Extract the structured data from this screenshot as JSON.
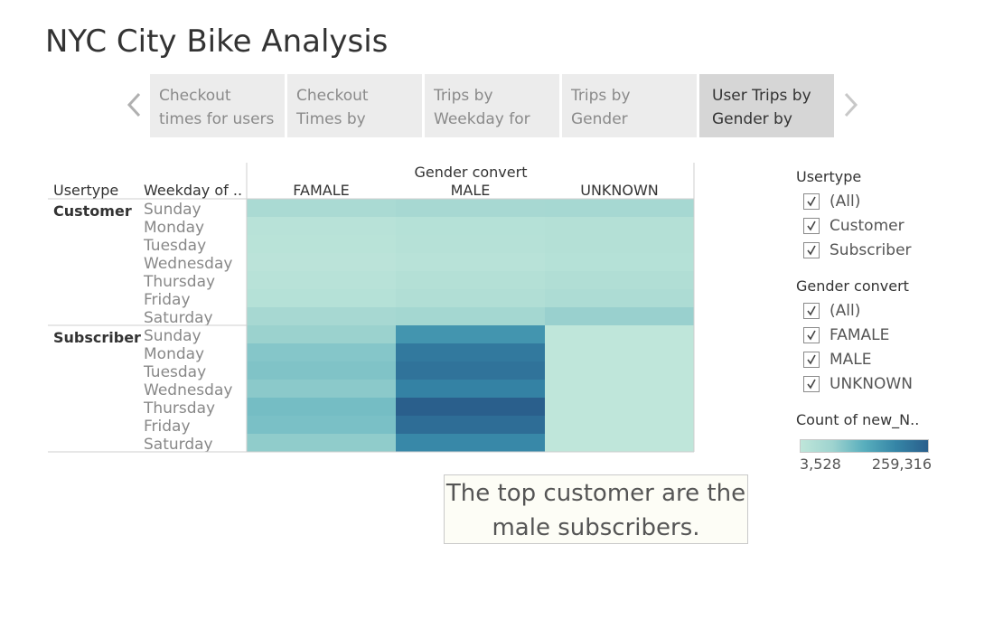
{
  "page_title": "NYC City Bike Analysis",
  "tabs": [
    {
      "line1": "Checkout",
      "line2": "times for users"
    },
    {
      "line1": "Checkout",
      "line2": "Times by"
    },
    {
      "line1": "Trips by",
      "line2": "Weekday for"
    },
    {
      "line1": "Trips by",
      "line2": "Gender"
    },
    {
      "line1": "User Trips by",
      "line2": "Gender by"
    }
  ],
  "filters": {
    "usertype": {
      "title": "Usertype",
      "options": [
        "(All)",
        "Customer",
        "Subscriber"
      ]
    },
    "gender": {
      "title": "Gender convert",
      "options": [
        "(All)",
        "FAMALE",
        "MALE",
        "UNKNOWN"
      ]
    }
  },
  "color_legend": {
    "title": "Count of new_N..",
    "min_label": "3,528",
    "max_label": "259,316",
    "min": 3528,
    "max": 259316,
    "colors": [
      "#bfe6da",
      "#9ed3cf",
      "#58aebd",
      "#3585a6",
      "#2a5f8c"
    ]
  },
  "annotation": {
    "line1": "The top customer are the",
    "line2": "male subscribers."
  },
  "chart_data": {
    "type": "heatmap",
    "column_header": "Gender convert",
    "row_headers": [
      "Usertype",
      "Weekday of .."
    ],
    "columns": [
      "FAMALE",
      "MALE",
      "UNKNOWN"
    ],
    "groups": [
      {
        "name": "Customer",
        "rows": [
          {
            "day": "Sunday",
            "values": [
              45000,
              50000,
              52000
            ]
          },
          {
            "day": "Monday",
            "values": [
              18000,
              22000,
              25000
            ]
          },
          {
            "day": "Tuesday",
            "values": [
              15000,
              20000,
              24000
            ]
          },
          {
            "day": "Wednesday",
            "values": [
              12000,
              18000,
              22000
            ]
          },
          {
            "day": "Thursday",
            "values": [
              18000,
              25000,
              30000
            ]
          },
          {
            "day": "Friday",
            "values": [
              22000,
              30000,
              38000
            ]
          },
          {
            "day": "Saturday",
            "values": [
              50000,
              55000,
              72000
            ]
          }
        ]
      },
      {
        "name": "Subscriber",
        "rows": [
          {
            "day": "Sunday",
            "values": [
              70000,
              170000,
              4000
            ]
          },
          {
            "day": "Monday",
            "values": [
              90000,
              215000,
              4000
            ]
          },
          {
            "day": "Tuesday",
            "values": [
              95000,
              225000,
              4000
            ]
          },
          {
            "day": "Wednesday",
            "values": [
              85000,
              200000,
              4000
            ]
          },
          {
            "day": "Thursday",
            "values": [
              105000,
              259316,
              4000
            ]
          },
          {
            "day": "Friday",
            "values": [
              100000,
              235000,
              3528
            ]
          },
          {
            "day": "Saturday",
            "values": [
              80000,
              190000,
              4000
            ]
          }
        ]
      }
    ]
  }
}
